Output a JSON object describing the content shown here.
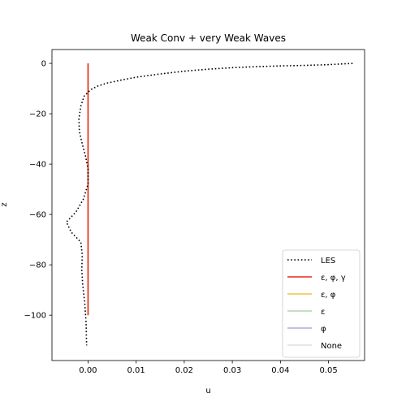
{
  "chart_data": {
    "type": "line",
    "title": "Weak Conv + very Weak Waves",
    "xlabel": "u",
    "ylabel": "z",
    "xlim": [
      -0.0075,
      0.0575
    ],
    "ylim": [
      -118,
      5.5
    ],
    "xticks": [
      0.0,
      0.01,
      0.02,
      0.03,
      0.04,
      0.05
    ],
    "xtick_labels": [
      "0.00",
      "0.01",
      "0.02",
      "0.03",
      "0.04",
      "0.05"
    ],
    "yticks": [
      0,
      -20,
      -40,
      -60,
      -80,
      -100
    ],
    "ytick_labels": [
      "0",
      "−20",
      "−40",
      "−60",
      "−80",
      "−100"
    ],
    "grid": false,
    "legend_position": "lower-right",
    "series": [
      {
        "name": "LES",
        "color": "#000000",
        "style": "dotted",
        "x": [
          0.055,
          0.05,
          0.045,
          0.04,
          0.035,
          0.03,
          0.025,
          0.02,
          0.015,
          0.01,
          0.007,
          0.004,
          0.002,
          0.0005,
          -0.0008,
          -0.0015,
          -0.0019,
          -0.0018,
          -0.0012,
          -0.0005,
          0.0,
          0.0,
          -0.001,
          -0.0025,
          -0.0045,
          -0.0035,
          -0.0015,
          -0.0012,
          -0.0013,
          -0.0011,
          -0.0007,
          -0.0004,
          -0.0003
        ],
        "y": [
          0,
          -0.5,
          -0.8,
          -1.0,
          -1.3,
          -1.7,
          -2.3,
          -3.1,
          -4.2,
          -5.5,
          -6.6,
          -7.8,
          -9.0,
          -10.5,
          -13,
          -17,
          -22,
          -27,
          -32,
          -37,
          -42,
          -48,
          -54,
          -59,
          -63,
          -67,
          -71,
          -76,
          -82,
          -88,
          -95,
          -103,
          -112
        ]
      },
      {
        "name": "ε, φ, γ",
        "color": "#e8291c",
        "style": "solid",
        "x": [
          0.0,
          0.0
        ],
        "y": [
          0,
          -100
        ]
      },
      {
        "name": "ε, φ",
        "color": "#f2c440",
        "style": "solid",
        "x": [
          0.0,
          0.0
        ],
        "y": [
          0,
          -100
        ]
      },
      {
        "name": "ε",
        "color": "#b3d4b0",
        "style": "solid",
        "x": [
          0.0,
          0.0
        ],
        "y": [
          0,
          -100
        ]
      },
      {
        "name": "φ",
        "color": "#b4a8d8",
        "style": "solid",
        "x": [
          0.0,
          0.0
        ],
        "y": [
          0,
          -100
        ]
      },
      {
        "name": "None",
        "color": "#dddddd",
        "style": "solid",
        "x": [
          0.0,
          0.0
        ],
        "y": [
          0,
          -100
        ]
      }
    ]
  }
}
